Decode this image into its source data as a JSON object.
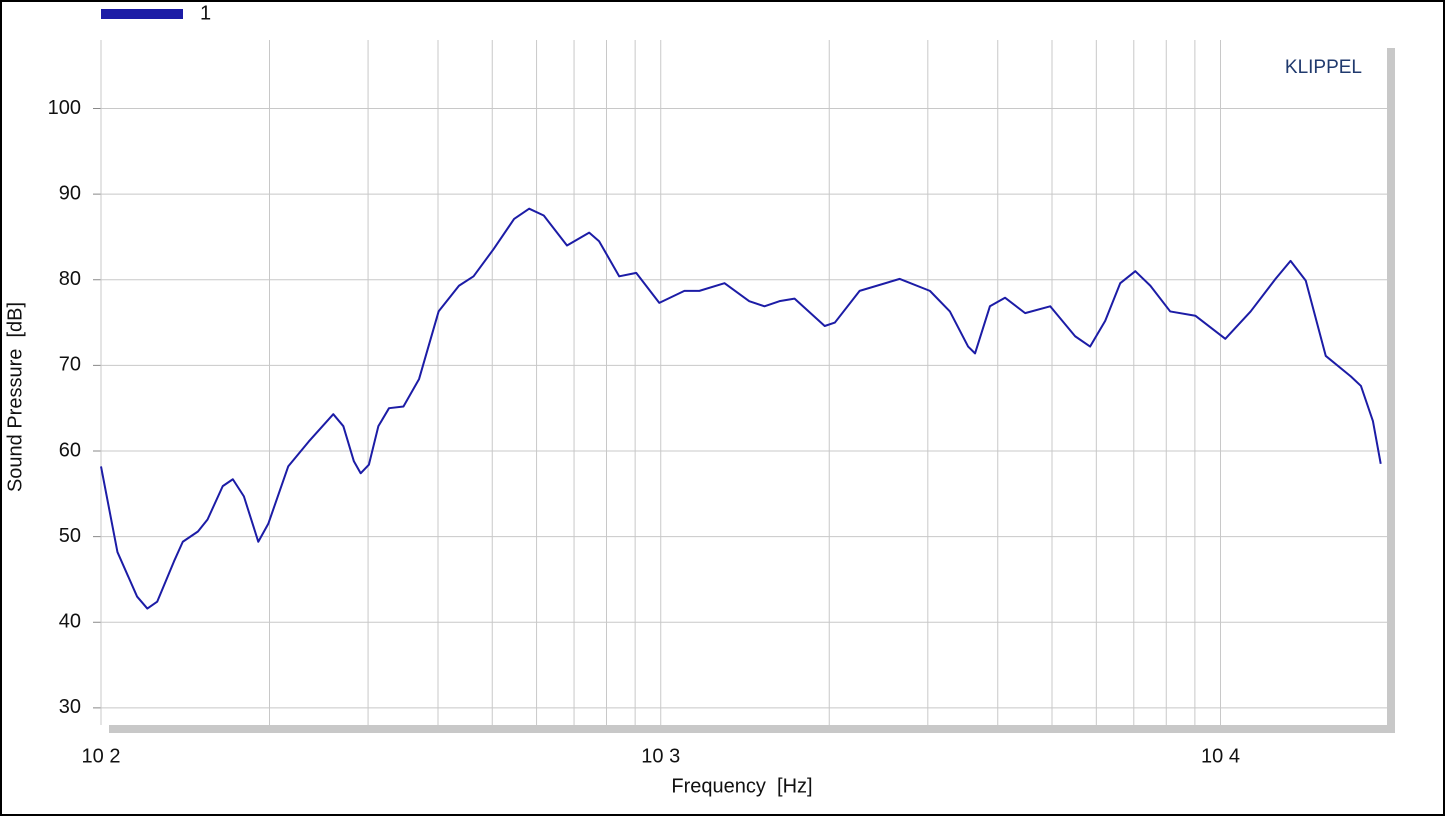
{
  "chart_data": {
    "type": "line",
    "x_label": "Frequency  [Hz]",
    "y_label": "Sound Pressure  [dB]",
    "annotation": "KLIPPEL",
    "log_x": true,
    "grid": true,
    "xlim": [
      100,
      20000
    ],
    "ylim": [
      28,
      108
    ],
    "xticks": [
      {
        "value": 100,
        "label": "10 2"
      },
      {
        "value": 1000,
        "label": "10 3"
      },
      {
        "value": 10000,
        "label": "10 4"
      }
    ],
    "x_minor_ticks": [
      200,
      300,
      400,
      500,
      600,
      700,
      800,
      900,
      2000,
      3000,
      4000,
      5000,
      6000,
      7000,
      8000,
      9000
    ],
    "yticks": [
      30,
      40,
      50,
      60,
      70,
      80,
      90,
      100
    ],
    "x": [
      100,
      107,
      116,
      121,
      126,
      135,
      140,
      149,
      155,
      165,
      172,
      180,
      191,
      199,
      216,
      235,
      260,
      271,
      283,
      291,
      301,
      313,
      327,
      347,
      370,
      401,
      436,
      463,
      503,
      547,
      582,
      618,
      680,
      745,
      776,
      843,
      904,
      994,
      1102,
      1172,
      1300,
      1439,
      1532,
      1630,
      1734,
      1963,
      2047,
      2266,
      2673,
      3026,
      3285,
      3541,
      3643,
      3873,
      4121,
      4477,
      4963,
      5499,
      5849,
      6223,
      6621,
      7044,
      7494,
      8131,
      9016,
      10200,
      11320,
      12540,
      13340,
      14200,
      15420,
      17100,
      17820,
      18720,
      19330
    ],
    "series": [
      {
        "name": "1",
        "color": "#1c1ca6",
        "values": [
          58.2,
          48.2,
          43.0,
          41.6,
          42.4,
          47.1,
          49.4,
          50.6,
          52.0,
          55.9,
          56.7,
          54.7,
          49.4,
          51.5,
          58.2,
          61.1,
          64.3,
          62.9,
          58.8,
          57.4,
          58.4,
          62.9,
          65.0,
          65.2,
          68.4,
          76.3,
          79.3,
          80.4,
          83.6,
          87.1,
          88.3,
          87.5,
          84.0,
          85.5,
          84.5,
          80.4,
          80.8,
          77.3,
          78.7,
          78.7,
          79.6,
          77.5,
          76.9,
          77.5,
          77.8,
          74.6,
          75.0,
          78.7,
          80.1,
          78.7,
          76.3,
          72.2,
          71.4,
          76.9,
          77.9,
          76.1,
          76.9,
          73.4,
          72.2,
          75.2,
          79.6,
          81.0,
          79.3,
          76.3,
          75.8,
          73.1,
          76.3,
          80.1,
          82.2,
          79.9,
          71.1,
          68.7,
          67.6,
          63.5,
          58.5
        ]
      }
    ]
  }
}
